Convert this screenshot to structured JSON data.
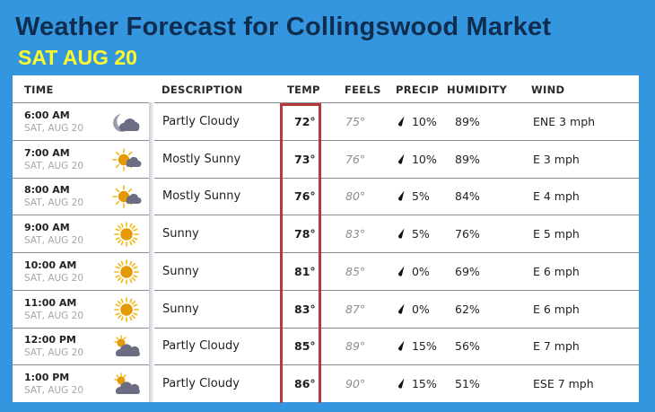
{
  "header": {
    "title": "Weather Forecast for Collingswood Market",
    "subtitle": "SAT AUG 20"
  },
  "colors": {
    "background": "#3596e0",
    "title": "#0f2e4f",
    "subtitle": "#fffb2a",
    "temp_highlight": "#b23a3c"
  },
  "table": {
    "columns": {
      "time": "TIME",
      "description": "DESCRIPTION",
      "temp": "TEMP",
      "feels": "FEELS",
      "precip": "PRECIP",
      "humidity": "HUMIDITY",
      "wind": "WIND"
    },
    "rows": [
      {
        "time": "6:00 AM",
        "date": "SAT, AUG 20",
        "icon": "moon-cloud-icon",
        "description": "Partly Cloudy",
        "temp": "72°",
        "feels": "75°",
        "precip": "10%",
        "humidity": "89%",
        "wind": "ENE 3 mph"
      },
      {
        "time": "7:00 AM",
        "date": "SAT, AUG 20",
        "icon": "sun-cloud-icon",
        "description": "Mostly Sunny",
        "temp": "73°",
        "feels": "76°",
        "precip": "10%",
        "humidity": "89%",
        "wind": "E 3 mph"
      },
      {
        "time": "8:00 AM",
        "date": "SAT, AUG 20",
        "icon": "sun-cloud-icon",
        "description": "Mostly Sunny",
        "temp": "76°",
        "feels": "80°",
        "precip": "5%",
        "humidity": "84%",
        "wind": "E 4 mph"
      },
      {
        "time": "9:00 AM",
        "date": "SAT, AUG 20",
        "icon": "sun-icon",
        "description": "Sunny",
        "temp": "78°",
        "feels": "83°",
        "precip": "5%",
        "humidity": "76%",
        "wind": "E 5 mph"
      },
      {
        "time": "10:00 AM",
        "date": "SAT, AUG 20",
        "icon": "sun-icon",
        "description": "Sunny",
        "temp": "81°",
        "feels": "85°",
        "precip": "0%",
        "humidity": "69%",
        "wind": "E 6 mph"
      },
      {
        "time": "11:00 AM",
        "date": "SAT, AUG 20",
        "icon": "sun-icon",
        "description": "Sunny",
        "temp": "83°",
        "feels": "87°",
        "precip": "0%",
        "humidity": "62%",
        "wind": "E 6 mph"
      },
      {
        "time": "12:00 PM",
        "date": "SAT, AUG 20",
        "icon": "partly-cloudy-icon",
        "description": "Partly Cloudy",
        "temp": "85°",
        "feels": "89°",
        "precip": "15%",
        "humidity": "56%",
        "wind": "E 7 mph"
      },
      {
        "time": "1:00 PM",
        "date": "SAT, AUG 20",
        "icon": "partly-cloudy-icon",
        "description": "Partly Cloudy",
        "temp": "86°",
        "feels": "90°",
        "precip": "15%",
        "humidity": "51%",
        "wind": "ESE 7 mph"
      }
    ]
  }
}
